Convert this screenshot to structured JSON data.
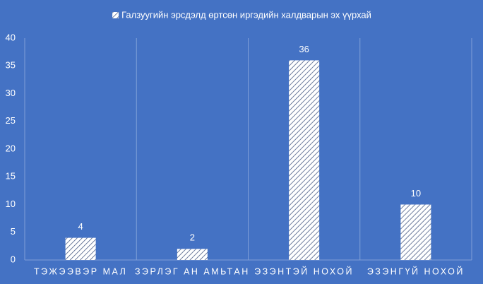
{
  "chart_data": {
    "type": "bar",
    "categories": [
      "ТЭЖЭЭВЭР МАЛ",
      "ЗЭРЛЭГ АН АМЬТАН",
      "ЭЗЭНТЭЙ НОХОЙ",
      "ЭЗЭНГҮЙ НОХОЙ"
    ],
    "series": [
      {
        "name": "Галзуугийн эрсдэлд өртсөн иргэдийн халдварын эх үүрхай",
        "color": "#ffffff",
        "values": [
          4,
          2,
          36,
          10
        ]
      }
    ],
    "ylim": [
      0,
      40
    ],
    "yticks": [
      0,
      5,
      10,
      15,
      20,
      25,
      30,
      35,
      40
    ],
    "legend": "top",
    "data_labels": true
  }
}
